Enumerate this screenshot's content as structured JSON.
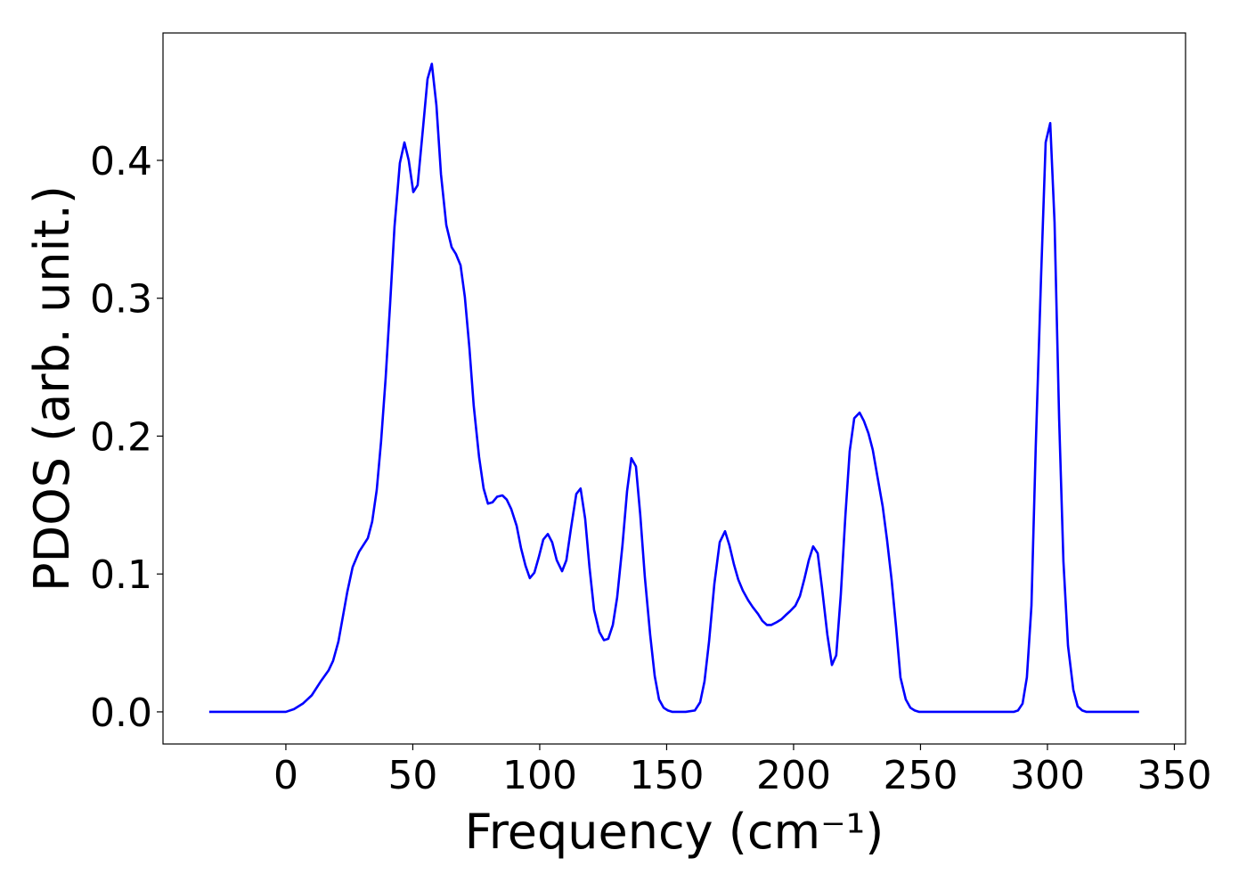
{
  "chart_data": {
    "type": "line",
    "xlabel": "Frequency (cm⁻¹)",
    "ylabel": "PDOS (arb. unit.)",
    "xlim": [
      -48.4,
      354.4
    ],
    "ylim": [
      -0.0233,
      0.4924
    ],
    "xticks": [
      0,
      50,
      100,
      150,
      200,
      250,
      300,
      350
    ],
    "yticks": [
      {
        "value": 0,
        "label": "0.0"
      },
      0.1,
      0.2,
      0.3,
      0.4
    ],
    "grid": false,
    "series": [
      {
        "color": "#0000ff",
        "x": [
          -30.2,
          0,
          3.2,
          6.7,
          10.2,
          13.7,
          16.8,
          18.6,
          20.7,
          24.2,
          26.3,
          28.8,
          32.3,
          34.0,
          35.8,
          37.5,
          39.3,
          41.1,
          42.8,
          44.9,
          46.7,
          48.4,
          50.2,
          51.9,
          54.0,
          55.8,
          57.5,
          59.3,
          61.1,
          63.2,
          65.3,
          67.0,
          68.8,
          70.5,
          72.3,
          74.0,
          76.1,
          77.9,
          79.6,
          81.4,
          83.2,
          85.3,
          87.0,
          88.8,
          90.9,
          92.6,
          94.4,
          96.1,
          97.9,
          99.6,
          101.4,
          103.2,
          104.9,
          106.7,
          108.8,
          110.5,
          112.3,
          114.4,
          116.1,
          117.9,
          119.6,
          121.4,
          123.5,
          125.3,
          127.0,
          128.8,
          130.5,
          132.6,
          134.4,
          136.1,
          137.9,
          139.6,
          141.4,
          143.5,
          145.3,
          147.0,
          148.8,
          150.5,
          152.3,
          157.5,
          161.1,
          163.2,
          164.9,
          166.7,
          168.8,
          170.9,
          173.0,
          174.7,
          176.5,
          178.2,
          180.0,
          182.1,
          183.9,
          186.0,
          187.7,
          189.5,
          191.2,
          193.3,
          195.1,
          196.8,
          198.6,
          200.7,
          202.5,
          204.2,
          206.0,
          207.7,
          209.5,
          211.2,
          213.3,
          215.1,
          216.8,
          218.6,
          220.4,
          222.1,
          223.9,
          226.0,
          227.7,
          229.5,
          231.2,
          233.0,
          235.1,
          236.8,
          238.6,
          240.4,
          242.1,
          244.2,
          246.0,
          247.7,
          249.5,
          286.7,
          288.4,
          290.2,
          291.9,
          293.7,
          295.4,
          297.5,
          299.3,
          301.1,
          302.8,
          304.6,
          306.3,
          308.1,
          310.2,
          311.9,
          313.7,
          315.4,
          336.1
        ],
        "values": [
          0,
          0,
          0.002,
          0.006,
          0.012,
          0.022,
          0.03,
          0.037,
          0.051,
          0.087,
          0.105,
          0.116,
          0.126,
          0.138,
          0.161,
          0.196,
          0.242,
          0.297,
          0.352,
          0.398,
          0.413,
          0.4,
          0.377,
          0.382,
          0.423,
          0.459,
          0.47,
          0.44,
          0.39,
          0.353,
          0.337,
          0.332,
          0.324,
          0.301,
          0.264,
          0.222,
          0.185,
          0.162,
          0.151,
          0.152,
          0.156,
          0.157,
          0.154,
          0.147,
          0.135,
          0.119,
          0.106,
          0.097,
          0.101,
          0.112,
          0.125,
          0.129,
          0.123,
          0.11,
          0.102,
          0.11,
          0.133,
          0.158,
          0.162,
          0.14,
          0.105,
          0.074,
          0.058,
          0.052,
          0.053,
          0.063,
          0.083,
          0.121,
          0.16,
          0.184,
          0.178,
          0.143,
          0.098,
          0.056,
          0.026,
          0.009,
          0.003,
          0.001,
          0,
          0,
          0.001,
          0.007,
          0.022,
          0.051,
          0.093,
          0.123,
          0.131,
          0.121,
          0.107,
          0.096,
          0.088,
          0.081,
          0.076,
          0.071,
          0.066,
          0.063,
          0.063,
          0.065,
          0.067,
          0.07,
          0.073,
          0.077,
          0.084,
          0.096,
          0.11,
          0.12,
          0.115,
          0.09,
          0.056,
          0.034,
          0.041,
          0.085,
          0.142,
          0.189,
          0.213,
          0.217,
          0.211,
          0.202,
          0.19,
          0.171,
          0.149,
          0.125,
          0.096,
          0.061,
          0.025,
          0.009,
          0.003,
          0.001,
          0,
          0,
          0.001,
          0.006,
          0.025,
          0.077,
          0.193,
          0.316,
          0.413,
          0.427,
          0.355,
          0.213,
          0.109,
          0.048,
          0.016,
          0.004,
          0.001,
          0,
          0
        ]
      }
    ]
  }
}
